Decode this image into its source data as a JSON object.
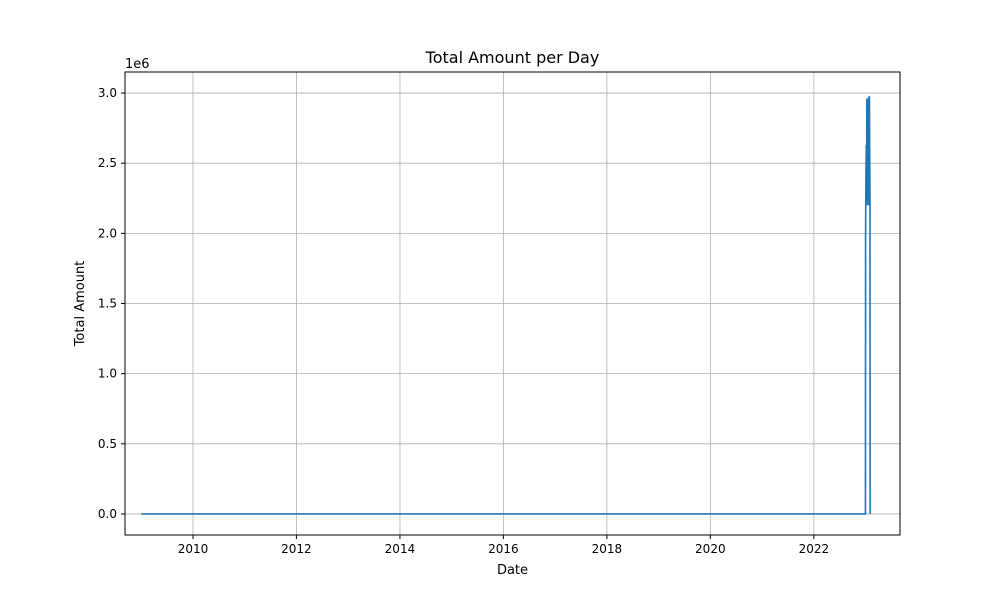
{
  "chart_data": {
    "type": "line",
    "title": "Total Amount per Day",
    "xlabel": "Date",
    "ylabel": "Total Amount",
    "y_offset_label": "1e6",
    "y_scale_factor": 1000000,
    "xlim": [
      "2008-09-08",
      "2023-09-01"
    ],
    "ylim": [
      -150000,
      3150000
    ],
    "x_ticks": [
      "2010-01-01",
      "2012-01-01",
      "2014-01-01",
      "2016-01-01",
      "2018-01-01",
      "2020-01-01",
      "2022-01-01"
    ],
    "x_tick_labels": [
      "2010",
      "2012",
      "2014",
      "2016",
      "2018",
      "2020",
      "2022"
    ],
    "y_ticks": [
      0,
      500000,
      1000000,
      1500000,
      2000000,
      2500000,
      3000000
    ],
    "y_tick_labels": [
      "0.0",
      "0.5",
      "1.0",
      "1.5",
      "2.0",
      "2.5",
      "3.0"
    ],
    "grid": true,
    "line_color": "#1f77b4",
    "grid_color": "#b0b0b0",
    "series": [
      {
        "x": [
          "2009-01-01",
          "2022-12-31",
          "2023-01-01",
          "2023-01-02",
          "2023-01-04",
          "2023-01-06",
          "2023-01-08",
          "2023-01-10",
          "2023-01-12",
          "2023-01-14",
          "2023-01-16",
          "2023-01-18",
          "2023-01-20",
          "2023-01-22",
          "2023-01-24",
          "2023-01-26",
          "2023-01-28",
          "2023-01-30",
          "2023-02-01",
          "2023-02-02"
        ],
        "y": [
          0,
          0,
          1970000,
          2190000,
          2460000,
          2630000,
          2280000,
          2960000,
          2600000,
          2200000,
          2940000,
          2580000,
          2330000,
          2970000,
          2480000,
          2200000,
          2980000,
          2560000,
          2260000,
          0
        ]
      }
    ]
  }
}
